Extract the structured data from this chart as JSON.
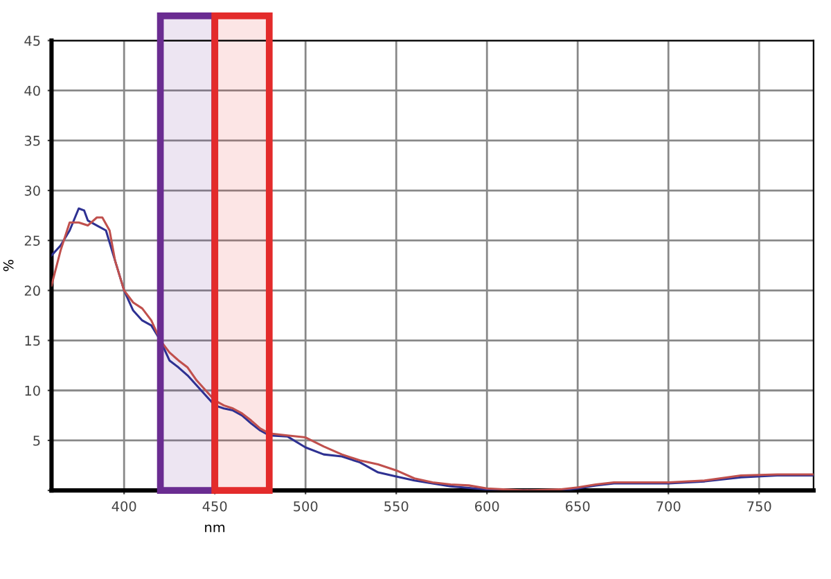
{
  "chart_data": {
    "type": "line",
    "xlabel": "nm",
    "ylabel": "%",
    "xlim": [
      360,
      780
    ],
    "ylim": [
      0,
      45
    ],
    "xticks": [
      400,
      450,
      500,
      550,
      600,
      650,
      700,
      750
    ],
    "yticks": [
      {
        "value": 0,
        "label": null
      },
      5,
      10,
      15,
      20,
      25,
      30,
      35,
      40,
      45
    ],
    "grid": true,
    "line_style": "solid",
    "marker": "none",
    "bands": [
      {
        "axis": "x",
        "from": 420,
        "to": 450,
        "color": "#6a2c91"
      },
      {
        "axis": "x",
        "from": 450,
        "to": 480,
        "color": "#e32b2b"
      }
    ],
    "series": [
      {
        "color": "#2e3192",
        "x": [
          360,
          365,
          370,
          375,
          378,
          380,
          385,
          390,
          395,
          400,
          405,
          410,
          415,
          420,
          425,
          430,
          435,
          440,
          445,
          450,
          455,
          460,
          465,
          470,
          475,
          480,
          490,
          500,
          510,
          520,
          530,
          540,
          550,
          560,
          570,
          580,
          600,
          620,
          640,
          650,
          660,
          670,
          700,
          720,
          740,
          760,
          780
        ],
        "values": [
          23.5,
          24.5,
          26,
          28.2,
          28,
          27,
          26.5,
          26,
          23,
          20,
          18,
          17,
          16.5,
          15,
          13,
          12.3,
          11.5,
          10.5,
          9.5,
          8.5,
          8.2,
          8,
          7.5,
          6.7,
          6,
          5.5,
          5.4,
          4.3,
          3.6,
          3.4,
          2.8,
          1.8,
          1.4,
          1,
          0.7,
          0.4,
          0.1,
          0,
          0,
          0.2,
          0.5,
          0.7,
          0.7,
          0.9,
          1.3,
          1.5,
          1.5
        ]
      },
      {
        "color": "#c0504d",
        "x": [
          360,
          365,
          370,
          375,
          380,
          385,
          388,
          392,
          395,
          400,
          405,
          410,
          415,
          420,
          425,
          430,
          435,
          440,
          445,
          450,
          455,
          460,
          465,
          470,
          475,
          480,
          490,
          500,
          510,
          520,
          530,
          540,
          550,
          560,
          570,
          580,
          590,
          600,
          620,
          640,
          650,
          660,
          670,
          700,
          720,
          740,
          760,
          780
        ],
        "values": [
          20.5,
          24,
          26.8,
          26.8,
          26.5,
          27.3,
          27.3,
          26,
          23,
          20,
          18.8,
          18.2,
          17,
          15,
          13.8,
          13,
          12.3,
          11,
          10,
          9,
          8.5,
          8.2,
          7.7,
          7,
          6.2,
          5.7,
          5.5,
          5.3,
          4.4,
          3.6,
          3,
          2.6,
          2,
          1.2,
          0.8,
          0.6,
          0.5,
          0.2,
          0,
          0.1,
          0.3,
          0.6,
          0.8,
          0.8,
          1.0,
          1.5,
          1.6,
          1.6
        ]
      }
    ]
  }
}
